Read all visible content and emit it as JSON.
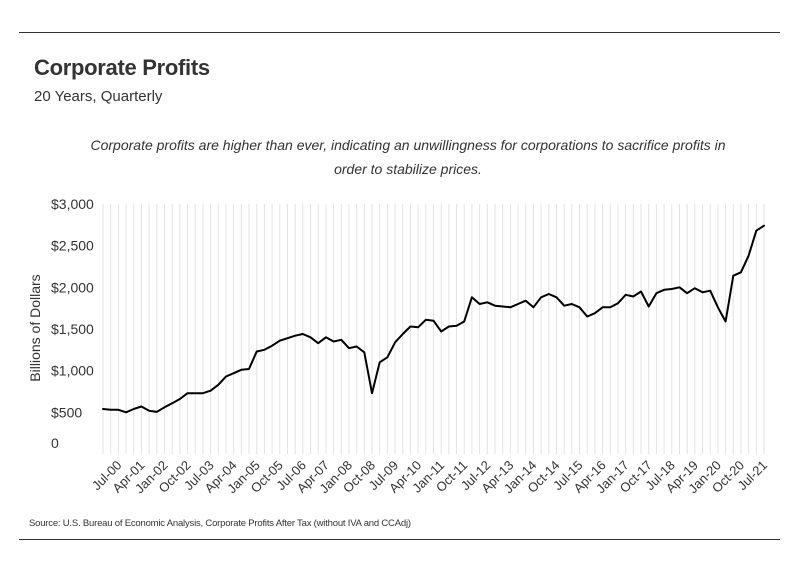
{
  "header": {
    "title": "Corporate Profits",
    "subtitle": "20 Years, Quarterly"
  },
  "annotation": "Corporate profits are higher than ever, indicating an unwillingness for corporations to sacrifice profits in order to stabilize prices.",
  "source": "Source: U.S. Bureau of Economic Analysis, Corporate Profits After Tax (without IVA and CCAdj)",
  "chart_data": {
    "type": "line",
    "title": "Corporate Profits",
    "subtitle": "20 Years, Quarterly",
    "xlabel": "",
    "ylabel": "Billions of Dollars",
    "ylim": [
      0,
      3000
    ],
    "yticks": [
      0,
      500,
      1000,
      1500,
      2000,
      2500,
      3000
    ],
    "ytick_labels": [
      "0",
      "$500",
      "$1,000",
      "$1,500",
      "$2,000",
      "$2,500",
      "$3,000"
    ],
    "xtick_labels": [
      "Jul-00",
      "Apr-01",
      "Jan-02",
      "Oct-02",
      "Jul-03",
      "Apr-04",
      "Jan-05",
      "Oct-05",
      "Jul-06",
      "Apr-07",
      "Jan-08",
      "Oct-08",
      "Jul-09",
      "Apr-10",
      "Jan-11",
      "Oct-11",
      "Jul-12",
      "Apr-13",
      "Jan-14",
      "Oct-14",
      "Jul-15",
      "Apr-16",
      "Jan-17",
      "Oct-17",
      "Jul-18",
      "Apr-19",
      "Jan-20",
      "Oct-20",
      "Jul-21"
    ],
    "grid": "vertical",
    "line_color": "#000000",
    "series": [
      {
        "x": [
          "Jan-00",
          "Apr-00",
          "Jul-00",
          "Oct-00",
          "Jan-01",
          "Apr-01",
          "Jul-01",
          "Oct-01",
          "Jan-02",
          "Apr-02",
          "Jul-02",
          "Oct-02",
          "Jan-03",
          "Apr-03",
          "Jul-03",
          "Oct-03",
          "Jan-04",
          "Apr-04",
          "Jul-04",
          "Oct-04",
          "Jan-05",
          "Apr-05",
          "Jul-05",
          "Oct-05",
          "Jan-06",
          "Apr-06",
          "Jul-06",
          "Oct-06",
          "Jan-07",
          "Apr-07",
          "Jul-07",
          "Oct-07",
          "Jan-08",
          "Apr-08",
          "Jul-08",
          "Oct-08",
          "Jan-09",
          "Apr-09",
          "Jul-09",
          "Oct-09",
          "Jan-10",
          "Apr-10",
          "Jul-10",
          "Oct-10",
          "Jan-11",
          "Apr-11",
          "Jul-11",
          "Oct-11",
          "Jan-12",
          "Apr-12",
          "Jul-12",
          "Oct-12",
          "Jan-13",
          "Apr-13",
          "Jul-13",
          "Oct-13",
          "Jan-14",
          "Apr-14",
          "Jul-14",
          "Oct-14",
          "Jan-15",
          "Apr-15",
          "Jul-15",
          "Oct-15",
          "Jan-16",
          "Apr-16",
          "Jul-16",
          "Oct-16",
          "Jan-17",
          "Apr-17",
          "Jul-17",
          "Oct-17",
          "Jan-18",
          "Apr-18",
          "Jul-18",
          "Oct-18",
          "Jan-19",
          "Apr-19",
          "Jul-19",
          "Oct-19",
          "Jan-20",
          "Apr-20",
          "Jul-20",
          "Oct-20",
          "Jan-21",
          "Apr-21",
          "Jul-21"
        ],
        "values": [
          540,
          530,
          530,
          500,
          540,
          570,
          520,
          505,
          560,
          610,
          660,
          730,
          730,
          730,
          760,
          830,
          930,
          970,
          1010,
          1020,
          1230,
          1250,
          1300,
          1360,
          1390,
          1420,
          1440,
          1400,
          1330,
          1400,
          1350,
          1370,
          1270,
          1290,
          1220,
          730,
          1100,
          1160,
          1340,
          1440,
          1530,
          1520,
          1610,
          1600,
          1470,
          1530,
          1540,
          1590,
          1880,
          1800,
          1820,
          1780,
          1770,
          1760,
          1800,
          1840,
          1760,
          1880,
          1920,
          1880,
          1780,
          1800,
          1760,
          1650,
          1690,
          1760,
          1760,
          1810,
          1910,
          1890,
          1950,
          1770,
          1930,
          1970,
          1980,
          2000,
          1930,
          1990,
          1940,
          1960,
          1760,
          1590,
          2140,
          2180,
          2380,
          2680,
          2740
        ]
      }
    ]
  }
}
